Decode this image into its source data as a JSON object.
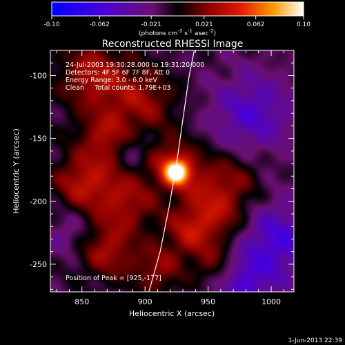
{
  "chart_data": {
    "type": "heatmap",
    "title": "Reconstructed RHESSI Image",
    "xlabel": "Heliocentric X (arcsec)",
    "ylabel": "Heliocentric Y (arcsec)",
    "xlim": [
      825,
      1018
    ],
    "ylim": [
      -272,
      -80
    ],
    "x_ticks": [
      850,
      900,
      950,
      1000
    ],
    "y_ticks": [
      -100,
      -150,
      -200,
      -250
    ],
    "colorbar": {
      "range": [
        -0.1,
        0.1
      ],
      "ticks": [
        "-0.10",
        "-0.062",
        "-0.021",
        "0.021",
        "0.062",
        "0.10"
      ],
      "units_prefix": "(photons cm",
      "units_exp1": "-2",
      "units_mid": " s",
      "units_exp2": "-1",
      "units_mid2": " asec",
      "units_exp3": "-2",
      "units_suffix": ")"
    },
    "annotations": [
      "24-Jul-2003 19:30:28.000 to 19:31:20.000",
      "Detectors: 4F 5F 6F 7F 8F, Att 0",
      "Energy Range: 3.0 - 6.0 keV",
      "Clean     Total counts: 1.79E+03"
    ],
    "peak_label": "Position of Peak = [925,-177]",
    "peak": {
      "x": 925,
      "y": -177,
      "value": 0.1
    },
    "limb_curve": [
      [
        903,
        -272
      ],
      [
        912,
        -240
      ],
      [
        919,
        -205
      ],
      [
        925,
        -170
      ],
      [
        930,
        -135
      ],
      [
        935,
        -100
      ],
      [
        939,
        -80
      ]
    ],
    "sources": [
      {
        "x": 925,
        "y": -177,
        "sigma": 7,
        "amp": 0.09
      },
      {
        "x": 920,
        "y": -168,
        "sigma": 14,
        "amp": 0.035
      },
      {
        "x": 945,
        "y": -185,
        "sigma": 18,
        "amp": 0.03
      },
      {
        "x": 860,
        "y": -100,
        "sigma": 20,
        "amp": 0.045
      },
      {
        "x": 900,
        "y": -120,
        "sigma": 18,
        "amp": 0.035
      },
      {
        "x": 870,
        "y": -150,
        "sigma": 16,
        "amp": 0.04
      },
      {
        "x": 850,
        "y": -185,
        "sigma": 16,
        "amp": 0.045
      },
      {
        "x": 885,
        "y": -200,
        "sigma": 18,
        "amp": 0.04
      },
      {
        "x": 960,
        "y": -210,
        "sigma": 16,
        "amp": 0.035
      },
      {
        "x": 935,
        "y": -225,
        "sigma": 14,
        "amp": 0.04
      },
      {
        "x": 870,
        "y": -240,
        "sigma": 16,
        "amp": 0.04
      },
      {
        "x": 910,
        "y": -255,
        "sigma": 14,
        "amp": 0.035
      },
      {
        "x": 955,
        "y": -250,
        "sigma": 12,
        "amp": 0.03
      },
      {
        "x": 985,
        "y": -130,
        "sigma": 22,
        "amp": -0.04
      },
      {
        "x": 1005,
        "y": -230,
        "sigma": 20,
        "amp": -0.045
      },
      {
        "x": 980,
        "y": -265,
        "sigma": 18,
        "amp": -0.04
      },
      {
        "x": 890,
        "y": -160,
        "sigma": 10,
        "amp": -0.025
      },
      {
        "x": 840,
        "y": -225,
        "sigma": 12,
        "amp": -0.02
      },
      {
        "x": 975,
        "y": -180,
        "sigma": 14,
        "amp": 0.02
      }
    ]
  },
  "timestamp": "1-Jun-2013 22:39"
}
